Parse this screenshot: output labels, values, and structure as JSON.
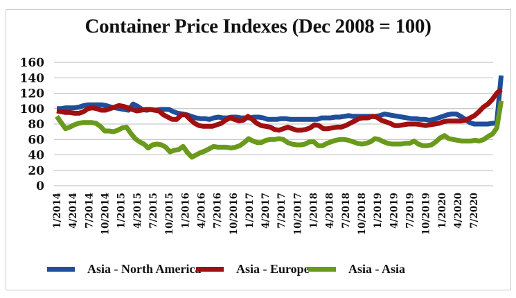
{
  "chart_data": {
    "type": "line",
    "title": "Container Price Indexes (Dec 2008 = 100)",
    "xlabel": "",
    "ylabel": "",
    "ylim": [
      0,
      160
    ],
    "yticks": [
      0,
      20,
      40,
      60,
      80,
      100,
      120,
      140,
      160
    ],
    "grid": true,
    "legend_position": "bottom",
    "x_tick_labels": [
      "1/2014",
      "4/2014",
      "7/2014",
      "10/2014",
      "1/2015",
      "4/2015",
      "7/2015",
      "10/2015",
      "1/2016",
      "4/2016",
      "7/2016",
      "10/2016",
      "1/2017",
      "4/2017",
      "7/2017",
      "10/2017",
      "1/2018",
      "4/2018",
      "7/2018",
      "10/2018",
      "1/2019",
      "4/2019",
      "7/2019",
      "10/2019",
      "1/2020",
      "4/2020",
      "7/2020"
    ],
    "x_start": "1/2014",
    "x_frequency": "monthly",
    "series": [
      {
        "name": "Asia - North America",
        "color": "#1f4e9c",
        "values": [
          100,
          100,
          101,
          101,
          101,
          102,
          104,
          105,
          105,
          105,
          105,
          104,
          102,
          101,
          100,
          99,
          98,
          106,
          103,
          99,
          98,
          99,
          98,
          99,
          99,
          99,
          96,
          94,
          93,
          92,
          90,
          88,
          87,
          87,
          86,
          88,
          89,
          88,
          88,
          89,
          89,
          88,
          88,
          88,
          89,
          89,
          88,
          86,
          86,
          86,
          87,
          87,
          86,
          86,
          86,
          86,
          86,
          86,
          86,
          88,
          88,
          88,
          89,
          89,
          90,
          91,
          90,
          90,
          90,
          90,
          90,
          90,
          91,
          93,
          92,
          91,
          90,
          89,
          88,
          87,
          87,
          86,
          86,
          85,
          86,
          88,
          90,
          92,
          93,
          93,
          90,
          86,
          82,
          80,
          80,
          80,
          80,
          81,
          81,
          143
        ]
      },
      {
        "name": "Asia - Europe",
        "color": "#a01010",
        "values": [
          97,
          96,
          95,
          95,
          94,
          94,
          96,
          100,
          101,
          100,
          98,
          98,
          100,
          102,
          104,
          103,
          101,
          99,
          97,
          98,
          99,
          99,
          98,
          97,
          92,
          89,
          86,
          86,
          92,
          92,
          86,
          81,
          78,
          77,
          77,
          77,
          79,
          81,
          85,
          88,
          86,
          84,
          85,
          90,
          86,
          81,
          78,
          77,
          76,
          73,
          72,
          74,
          76,
          74,
          72,
          72,
          73,
          75,
          79,
          78,
          74,
          74,
          75,
          76,
          76,
          78,
          81,
          84,
          87,
          88,
          88,
          90,
          89,
          85,
          83,
          81,
          78,
          78,
          79,
          80,
          80,
          80,
          79,
          78,
          79,
          80,
          81,
          83,
          84,
          84,
          84,
          84,
          85,
          88,
          91,
          96,
          102,
          106,
          112,
          120,
          125
        ]
      },
      {
        "name": "Asia - Asia",
        "color": "#6a9a1c",
        "values": [
          90,
          82,
          74,
          76,
          79,
          81,
          82,
          82,
          82,
          81,
          77,
          71,
          71,
          70,
          72,
          75,
          76,
          68,
          61,
          57,
          54,
          49,
          53,
          54,
          53,
          50,
          44,
          46,
          47,
          51,
          43,
          37,
          40,
          43,
          45,
          48,
          51,
          50,
          50,
          50,
          49,
          50,
          52,
          56,
          61,
          58,
          56,
          56,
          59,
          60,
          60,
          61,
          60,
          56,
          54,
          53,
          53,
          54,
          57,
          57,
          52,
          52,
          55,
          57,
          59,
          60,
          60,
          59,
          57,
          55,
          54,
          55,
          57,
          61,
          60,
          57,
          55,
          54,
          54,
          54,
          55,
          55,
          58,
          54,
          52,
          52,
          53,
          57,
          62,
          65,
          61,
          60,
          59,
          58,
          58,
          58,
          59,
          58,
          60,
          64,
          67,
          75,
          110
        ]
      }
    ]
  }
}
